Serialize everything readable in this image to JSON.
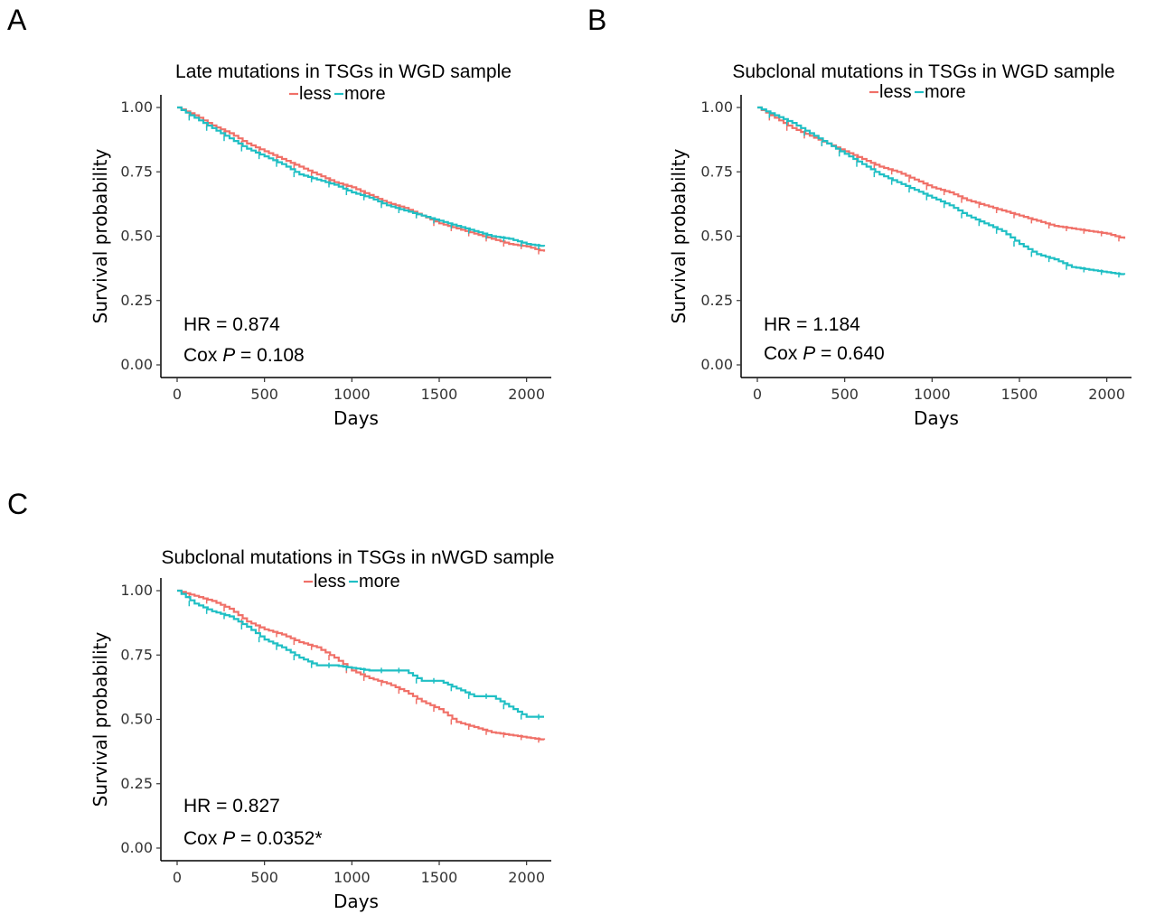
{
  "panels": [
    {
      "letter": "A"
    },
    {
      "letter": "B"
    },
    {
      "letter": "C"
    }
  ],
  "colors": {
    "less": "#f07068",
    "more": "#1fbfc4"
  },
  "chart_data": [
    {
      "type": "line",
      "title": "Late mutations in TSGs in WGD sample",
      "xlabel": "Days",
      "ylabel": "Survival probability",
      "xlim": [
        0,
        2100
      ],
      "ylim": [
        0,
        1.05
      ],
      "x_ticks": [
        "0",
        "500",
        "1000",
        "1500",
        "2000"
      ],
      "y_ticks": [
        "0.00",
        "0.25",
        "0.50",
        "0.75",
        "1.00"
      ],
      "legend": {
        "position": "top-center",
        "entries": [
          "less",
          "more"
        ]
      },
      "annotations": {
        "hr": "HR = 0.874",
        "cox_prefix": "Cox ",
        "cox_p": "P",
        "cox_value": " = 0.108"
      },
      "series": [
        {
          "name": "less",
          "color": "#f07068",
          "x": [
            0,
            100,
            200,
            300,
            400,
            500,
            600,
            700,
            800,
            900,
            1000,
            1100,
            1200,
            1300,
            1400,
            1500,
            1600,
            1700,
            1800,
            1900,
            2000,
            2100
          ],
          "y": [
            1.0,
            0.97,
            0.93,
            0.9,
            0.86,
            0.83,
            0.8,
            0.77,
            0.74,
            0.71,
            0.69,
            0.66,
            0.63,
            0.61,
            0.58,
            0.55,
            0.53,
            0.51,
            0.49,
            0.47,
            0.46,
            0.44
          ]
        },
        {
          "name": "more",
          "color": "#1fbfc4",
          "x": [
            0,
            100,
            200,
            300,
            400,
            500,
            600,
            700,
            800,
            900,
            1000,
            1100,
            1200,
            1300,
            1400,
            1500,
            1600,
            1700,
            1800,
            1900,
            2000,
            2100
          ],
          "y": [
            1.0,
            0.96,
            0.92,
            0.88,
            0.84,
            0.81,
            0.78,
            0.74,
            0.72,
            0.7,
            0.67,
            0.65,
            0.62,
            0.6,
            0.58,
            0.56,
            0.54,
            0.52,
            0.5,
            0.49,
            0.47,
            0.46
          ]
        }
      ]
    },
    {
      "type": "line",
      "title": "Subclonal mutations in TSGs in WGD sample",
      "xlabel": "Days",
      "ylabel": "Survival probability",
      "xlim": [
        0,
        2100
      ],
      "ylim": [
        0,
        1.05
      ],
      "x_ticks": [
        "0",
        "500",
        "1000",
        "1500",
        "2000"
      ],
      "y_ticks": [
        "0.00",
        "0.25",
        "0.50",
        "0.75",
        "1.00"
      ],
      "legend": {
        "position": "top-center",
        "entries": [
          "less",
          "more"
        ]
      },
      "annotations": {
        "hr": "HR = 1.184",
        "cox_prefix": "Cox ",
        "cox_p": "P",
        "cox_value": " = 0.640"
      },
      "series": [
        {
          "name": "less",
          "color": "#f07068",
          "x": [
            0,
            100,
            200,
            300,
            400,
            500,
            600,
            700,
            800,
            900,
            1000,
            1100,
            1200,
            1300,
            1400,
            1500,
            1600,
            1700,
            1800,
            1900,
            2000,
            2100
          ],
          "y": [
            1.0,
            0.96,
            0.92,
            0.89,
            0.86,
            0.83,
            0.8,
            0.77,
            0.75,
            0.72,
            0.69,
            0.67,
            0.64,
            0.62,
            0.6,
            0.58,
            0.56,
            0.54,
            0.53,
            0.52,
            0.51,
            0.49
          ]
        },
        {
          "name": "more",
          "color": "#1fbfc4",
          "x": [
            0,
            100,
            200,
            300,
            400,
            500,
            600,
            700,
            800,
            900,
            1000,
            1100,
            1200,
            1300,
            1400,
            1500,
            1600,
            1700,
            1800,
            1900,
            2000,
            2100
          ],
          "y": [
            1.0,
            0.97,
            0.94,
            0.9,
            0.86,
            0.82,
            0.78,
            0.74,
            0.71,
            0.68,
            0.65,
            0.62,
            0.58,
            0.55,
            0.52,
            0.47,
            0.43,
            0.41,
            0.38,
            0.37,
            0.36,
            0.35
          ]
        }
      ]
    },
    {
      "type": "line",
      "title": "Subclonal mutations in TSGs in nWGD sample",
      "xlabel": "Days",
      "ylabel": "Survival probability",
      "xlim": [
        0,
        2100
      ],
      "ylim": [
        0,
        1.05
      ],
      "x_ticks": [
        "0",
        "500",
        "1000",
        "1500",
        "2000"
      ],
      "y_ticks": [
        "0.00",
        "0.25",
        "0.50",
        "0.75",
        "1.00"
      ],
      "legend": {
        "position": "top-center",
        "entries": [
          "less",
          "more"
        ]
      },
      "annotations": {
        "hr": "HR = 0.827",
        "cox_prefix": "Cox ",
        "cox_p": "P",
        "cox_value": " = 0.0352*"
      },
      "series": [
        {
          "name": "less",
          "color": "#f07068",
          "x": [
            0,
            100,
            200,
            300,
            400,
            500,
            600,
            700,
            800,
            900,
            1000,
            1100,
            1200,
            1300,
            1400,
            1500,
            1600,
            1700,
            1800,
            1900,
            2000,
            2100
          ],
          "y": [
            1.0,
            0.98,
            0.96,
            0.93,
            0.88,
            0.85,
            0.83,
            0.8,
            0.78,
            0.74,
            0.69,
            0.66,
            0.64,
            0.61,
            0.57,
            0.54,
            0.49,
            0.47,
            0.45,
            0.44,
            0.43,
            0.42
          ]
        },
        {
          "name": "more",
          "color": "#1fbfc4",
          "x": [
            0,
            100,
            200,
            300,
            400,
            500,
            600,
            700,
            800,
            900,
            1000,
            1100,
            1200,
            1300,
            1400,
            1500,
            1600,
            1700,
            1800,
            1900,
            2000,
            2100
          ],
          "y": [
            1.0,
            0.95,
            0.92,
            0.9,
            0.86,
            0.81,
            0.78,
            0.74,
            0.71,
            0.71,
            0.7,
            0.69,
            0.69,
            0.69,
            0.65,
            0.65,
            0.62,
            0.59,
            0.59,
            0.55,
            0.51,
            0.51
          ]
        }
      ]
    }
  ]
}
